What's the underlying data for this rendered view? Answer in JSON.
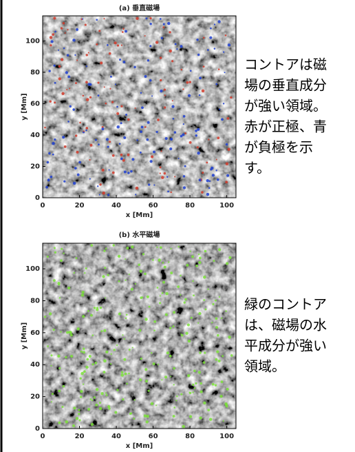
{
  "panels": [
    {
      "title": "(a) 垂直磁場",
      "x_label": "x [Mm]",
      "y_label": "y [Mm]",
      "xticks": [
        0,
        20,
        40,
        60,
        80,
        100
      ],
      "yticks": [
        0,
        20,
        40,
        60,
        80,
        100
      ],
      "xlim": [
        0,
        105
      ],
      "ylim": [
        0,
        116
      ],
      "caption": [
        "コントアは磁",
        "場の垂直成分",
        "が強い領域。",
        "赤が正極、青",
        "が負極を示",
        "す。"
      ]
    },
    {
      "title": "(b) 水平磁場",
      "x_label": "x [Mm]",
      "y_label": "y [Mm]",
      "xticks": [
        0,
        20,
        40,
        60,
        80,
        100
      ],
      "yticks": [
        0,
        20,
        40,
        60,
        80,
        100
      ],
      "xlim": [
        0,
        105
      ],
      "ylim": [
        0,
        116
      ],
      "caption": [
        "緑のコントア",
        "は、磁場の水",
        "平成分が強い",
        "領域。"
      ]
    }
  ]
}
